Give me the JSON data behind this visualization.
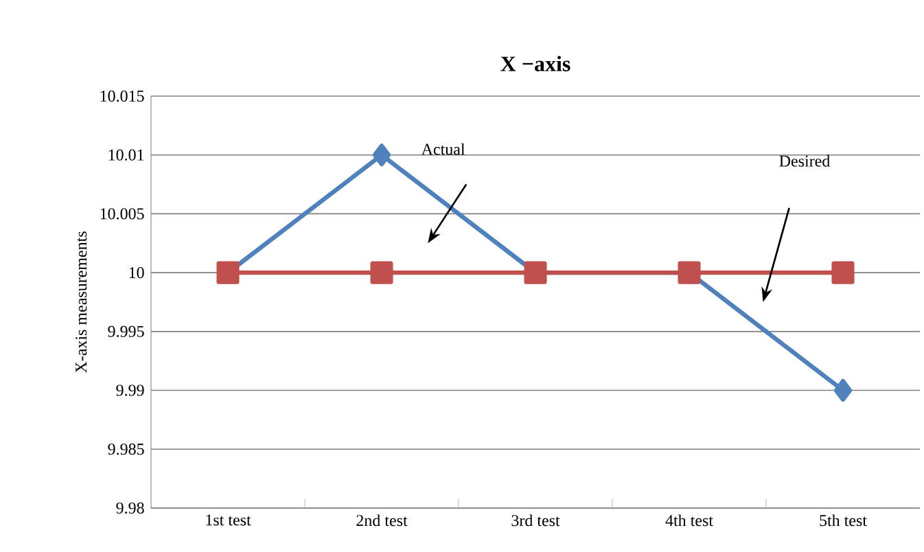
{
  "chart_data": {
    "type": "line",
    "title": "X −axis",
    "ylabel": "X-axis measurements",
    "categories": [
      "1st test",
      "2nd test",
      "3rd test",
      "4th test",
      "5th test"
    ],
    "series": [
      {
        "color": "#4f81bd",
        "marker": "diamond",
        "values": [
          10,
          10.01,
          10,
          10,
          9.99
        ]
      },
      {
        "color": "#c0504d",
        "marker": "square",
        "values": [
          10,
          10,
          10,
          10,
          10
        ]
      }
    ],
    "ylim": [
      9.98,
      10.015
    ],
    "yticks": [
      9.98,
      9.985,
      9.99,
      9.995,
      10,
      10.005,
      10.01,
      10.015
    ],
    "grid": "y",
    "annotations": [
      "Actual",
      "Desired"
    ]
  }
}
